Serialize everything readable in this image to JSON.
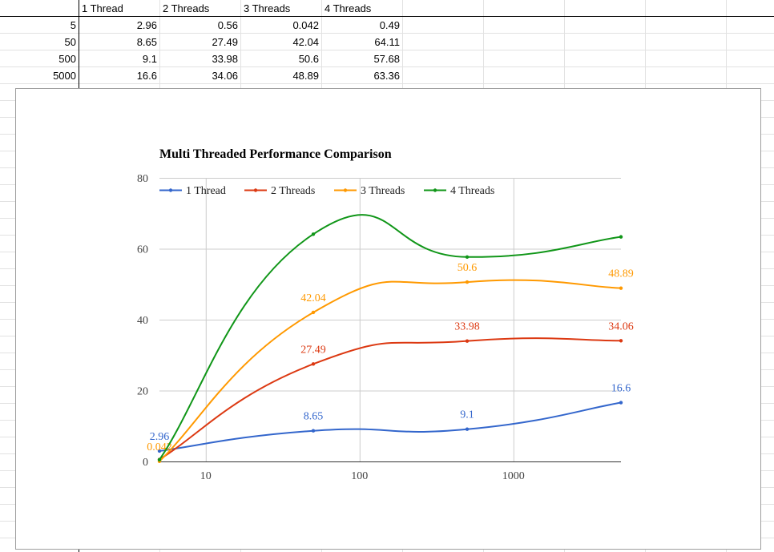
{
  "sheet": {
    "headers": [
      "",
      "1 Thread",
      "2 Threads",
      "3 Threads",
      "4 Threads"
    ],
    "rows": [
      [
        "5",
        "2.96",
        "0.56",
        "0.042",
        "0.49"
      ],
      [
        "50",
        "8.65",
        "27.49",
        "42.04",
        "64.11"
      ],
      [
        "500",
        "9.1",
        "33.98",
        "50.6",
        "57.68"
      ],
      [
        "5000",
        "16.6",
        "34.06",
        "48.89",
        "63.36"
      ]
    ]
  },
  "chart_data": {
    "type": "line",
    "title": "Multi Threaded Performance Comparison",
    "x": [
      5,
      50,
      500,
      5000
    ],
    "x_scale": "log",
    "x_ticks": [
      "10",
      "100",
      "1000"
    ],
    "ylim": [
      0,
      80
    ],
    "y_ticks": [
      "0",
      "20",
      "40",
      "60",
      "80"
    ],
    "grid": true,
    "legend": "top-left",
    "series": [
      {
        "name": "1 Thread",
        "color": "#3366cc",
        "values": [
          2.96,
          8.65,
          9.1,
          16.6
        ],
        "labels": [
          "2.96",
          "8.65",
          "9.1",
          "16.6"
        ]
      },
      {
        "name": "2 Threads",
        "color": "#dc3912",
        "values": [
          0.56,
          27.49,
          33.98,
          34.06
        ],
        "labels": [
          "",
          "27.49",
          "33.98",
          "34.06"
        ]
      },
      {
        "name": "3 Threads",
        "color": "#ff9900",
        "values": [
          0.042,
          42.04,
          50.6,
          48.89
        ],
        "labels": [
          "0.042",
          "42.04",
          "50.6",
          "48.89"
        ]
      },
      {
        "name": "4 Threads",
        "color": "#109618",
        "values": [
          0.49,
          64.11,
          57.68,
          63.36
        ],
        "labels": [
          "",
          "",
          "",
          ""
        ]
      }
    ]
  }
}
